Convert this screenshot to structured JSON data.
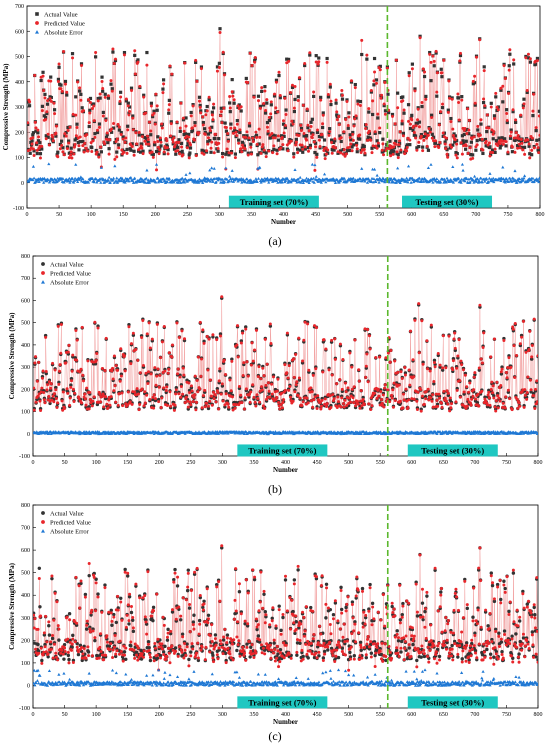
{
  "chart_data": [
    {
      "panel_label": "(a)",
      "type": "scatter",
      "xlabel": "Number",
      "ylabel": "Compressive Strength (MPa)",
      "xlim": [
        0,
        800
      ],
      "ylim": [
        -100,
        700
      ],
      "x_ticks": [
        0,
        50,
        100,
        150,
        200,
        250,
        300,
        350,
        400,
        450,
        500,
        550,
        600,
        650,
        700,
        750,
        800
      ],
      "y_ticks": [
        -100,
        0,
        100,
        200,
        300,
        400,
        500,
        600,
        700
      ],
      "legend_position": "top-left",
      "split_line_x": 562,
      "annotations": [
        {
          "text": "Training set (70%)",
          "x": 385,
          "y": -75
        },
        {
          "text": "Testing  set (30%)",
          "x": 655,
          "y": -75
        }
      ],
      "series": [
        {
          "name": "Actual Value",
          "marker": "square",
          "color": "#333333",
          "line": false
        },
        {
          "name": "Predicted Value",
          "marker": "circle",
          "color": "#e8262b",
          "line": true
        },
        {
          "name": "Absolute Error",
          "marker": "triangle",
          "color": "#1f78d4",
          "line": false
        }
      ],
      "sample_count": 800,
      "actual_peaks": [
        {
          "x": 300,
          "y": 610
        },
        {
          "x": 612,
          "y": 580
        },
        {
          "x": 705,
          "y": 570
        }
      ],
      "error_range": [
        0,
        75
      ]
    },
    {
      "panel_label": "(b)",
      "type": "scatter",
      "xlabel": "Number",
      "ylabel": "Compressive Strength (MPa)",
      "xlim": [
        0,
        800
      ],
      "ylim": [
        -100,
        800
      ],
      "x_ticks": [
        0,
        50,
        100,
        150,
        200,
        250,
        300,
        350,
        400,
        450,
        500,
        550,
        600,
        650,
        700,
        750,
        800
      ],
      "y_ticks": [
        -100,
        0,
        100,
        200,
        300,
        400,
        500,
        600,
        700,
        800
      ],
      "legend_position": "top-left",
      "split_line_x": 562,
      "annotations": [
        {
          "text": "Training set (70%)",
          "x": 395,
          "y": -75
        },
        {
          "text": "Testing  set (30%)",
          "x": 665,
          "y": -75
        }
      ],
      "series": [
        {
          "name": "Actual Value",
          "marker": "circle",
          "color": "#333333",
          "line": false
        },
        {
          "name": "Predicted Value",
          "marker": "circle",
          "color": "#e8262b",
          "line": true
        },
        {
          "name": "Absolute Error",
          "marker": "triangle",
          "color": "#1f78d4",
          "line": false
        }
      ],
      "sample_count": 800,
      "actual_peaks": [
        {
          "x": 298,
          "y": 610
        },
        {
          "x": 610,
          "y": 580
        },
        {
          "x": 707,
          "y": 570
        }
      ],
      "error_range": [
        0,
        20
      ]
    },
    {
      "panel_label": "(c)",
      "type": "scatter",
      "xlabel": "Number",
      "ylabel": "Compressive Strength (MPa)",
      "xlim": [
        0,
        800
      ],
      "ylim": [
        -100,
        800
      ],
      "x_ticks": [
        0,
        50,
        100,
        150,
        200,
        250,
        300,
        350,
        400,
        450,
        500,
        550,
        600,
        650,
        700,
        750,
        800
      ],
      "y_ticks": [
        -100,
        0,
        100,
        200,
        300,
        400,
        500,
        600,
        700,
        800
      ],
      "legend_position": "top-left",
      "split_line_x": 562,
      "annotations": [
        {
          "text": "Training set (70%)",
          "x": 395,
          "y": -75
        },
        {
          "text": "Testing  set (30%)",
          "x": 665,
          "y": -75
        }
      ],
      "series": [
        {
          "name": "Actual Value",
          "marker": "circle",
          "color": "#333333",
          "line": false
        },
        {
          "name": "Predicted Value",
          "marker": "circle",
          "color": "#e8262b",
          "line": true
        },
        {
          "name": "Absolute Error",
          "marker": "triangle",
          "color": "#1f78d4",
          "line": false
        }
      ],
      "sample_count": 800,
      "actual_peaks": [
        {
          "x": 298,
          "y": 610
        },
        {
          "x": 612,
          "y": 580
        },
        {
          "x": 707,
          "y": 610
        }
      ],
      "error_range": [
        0,
        70
      ]
    }
  ],
  "colors": {
    "actual": "#333333",
    "predicted": "#e8262b",
    "predicted_line": "#f2a0a0",
    "error": "#1f78d4",
    "split_line": "#5cb82e",
    "annotation_bg": "#1fc7c1"
  }
}
